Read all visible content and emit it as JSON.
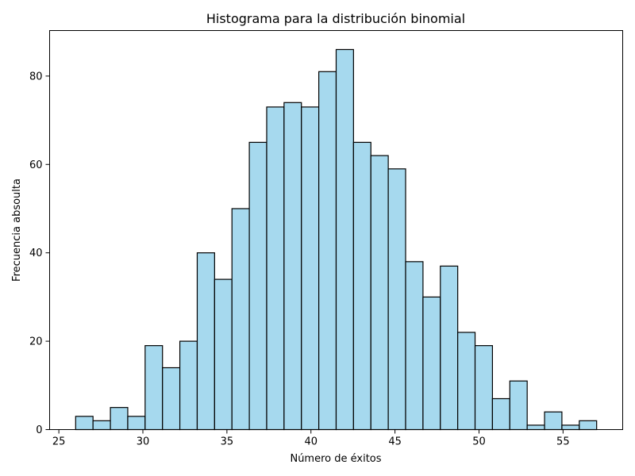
{
  "chart_data": {
    "type": "bar",
    "title": "Histograma para la distribución binomial",
    "xlabel": "Número de éxitos",
    "ylabel": "Frecuencia absoulta",
    "bin_width": 1.033,
    "bins": [
      {
        "x_start": 26.0,
        "x_end": 27.033,
        "count": 3
      },
      {
        "x_start": 27.033,
        "x_end": 28.067,
        "count": 2
      },
      {
        "x_start": 28.067,
        "x_end": 29.1,
        "count": 5
      },
      {
        "x_start": 29.1,
        "x_end": 30.133,
        "count": 3
      },
      {
        "x_start": 30.133,
        "x_end": 31.167,
        "count": 19
      },
      {
        "x_start": 31.167,
        "x_end": 32.2,
        "count": 14
      },
      {
        "x_start": 32.2,
        "x_end": 33.233,
        "count": 20
      },
      {
        "x_start": 33.233,
        "x_end": 34.267,
        "count": 40
      },
      {
        "x_start": 34.267,
        "x_end": 35.3,
        "count": 34
      },
      {
        "x_start": 35.3,
        "x_end": 36.333,
        "count": 50
      },
      {
        "x_start": 36.333,
        "x_end": 37.367,
        "count": 65
      },
      {
        "x_start": 37.367,
        "x_end": 38.4,
        "count": 73
      },
      {
        "x_start": 38.4,
        "x_end": 39.433,
        "count": 74
      },
      {
        "x_start": 39.433,
        "x_end": 40.467,
        "count": 73
      },
      {
        "x_start": 40.467,
        "x_end": 41.5,
        "count": 81
      },
      {
        "x_start": 41.5,
        "x_end": 42.533,
        "count": 86
      },
      {
        "x_start": 42.533,
        "x_end": 43.567,
        "count": 65
      },
      {
        "x_start": 43.567,
        "x_end": 44.6,
        "count": 62
      },
      {
        "x_start": 44.6,
        "x_end": 45.633,
        "count": 59
      },
      {
        "x_start": 45.633,
        "x_end": 46.667,
        "count": 38
      },
      {
        "x_start": 46.667,
        "x_end": 47.7,
        "count": 30
      },
      {
        "x_start": 47.7,
        "x_end": 48.733,
        "count": 37
      },
      {
        "x_start": 48.733,
        "x_end": 49.767,
        "count": 22
      },
      {
        "x_start": 49.767,
        "x_end": 50.8,
        "count": 19
      },
      {
        "x_start": 50.8,
        "x_end": 51.833,
        "count": 7
      },
      {
        "x_start": 51.833,
        "x_end": 52.867,
        "count": 11
      },
      {
        "x_start": 52.867,
        "x_end": 53.9,
        "count": 1
      },
      {
        "x_start": 53.9,
        "x_end": 54.933,
        "count": 4
      },
      {
        "x_start": 54.933,
        "x_end": 55.967,
        "count": 1
      },
      {
        "x_start": 55.967,
        "x_end": 57.0,
        "count": 2
      }
    ],
    "xlim": [
      24.45,
      58.55
    ],
    "ylim": [
      0,
      90.3
    ],
    "x_ticks": [
      25,
      30,
      35,
      40,
      45,
      50,
      55
    ],
    "y_ticks": [
      0,
      20,
      40,
      60,
      80
    ],
    "grid": false,
    "colors": {
      "bar_fill": "#a6d9ee",
      "bar_edge": "#000000",
      "axes": "#000000"
    }
  }
}
